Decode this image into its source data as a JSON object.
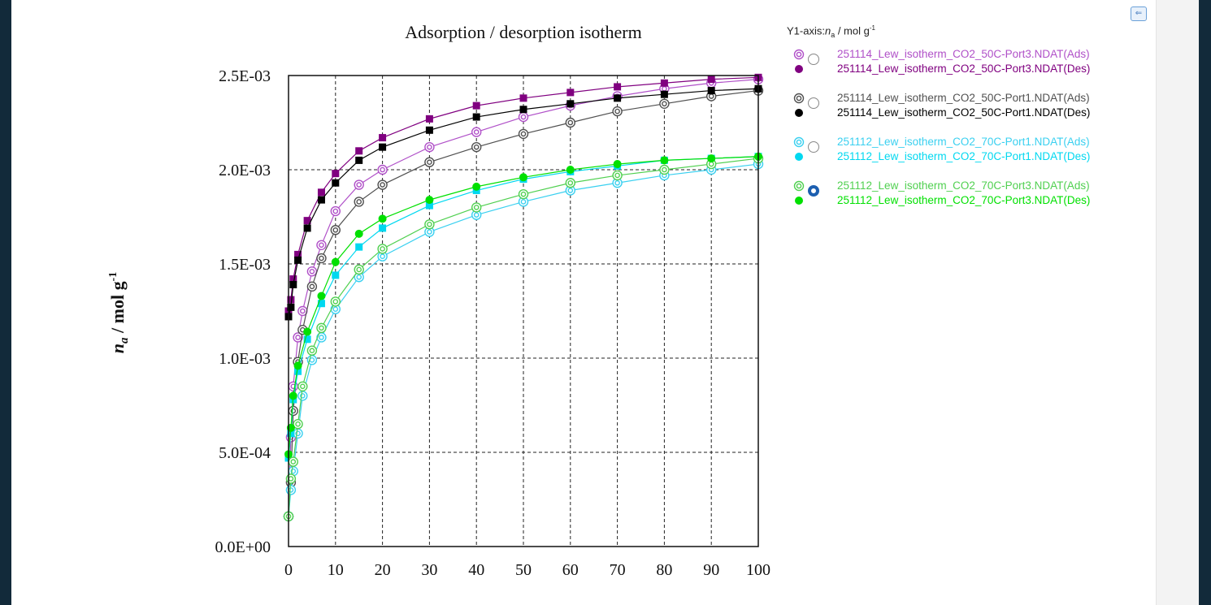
{
  "legend": {
    "axis_label": "Y1-axis:",
    "axis_sym": "n",
    "axis_sub": "a",
    "axis_unit": " / mol g",
    "axis_sup": "-1",
    "collapse_icon": "collapse-left-icon"
  },
  "chart_data": {
    "type": "scatter",
    "title": "Adsorption / desorption isotherm",
    "xlabel": "",
    "ylabel_symbol": "n",
    "ylabel_subscript": "a",
    "ylabel_unit": " / mol g",
    "ylabel_superscript": "-1",
    "xlim": [
      0,
      100
    ],
    "ylim": [
      0,
      0.0025
    ],
    "x_ticks": [
      0,
      10,
      20,
      30,
      40,
      50,
      60,
      70,
      80,
      90,
      100
    ],
    "x_tick_labels": [
      "0",
      "10",
      "20",
      "30",
      "40",
      "50",
      "60",
      "70",
      "80",
      "90",
      "100"
    ],
    "y_ticks": [
      0,
      0.0005,
      0.001,
      0.0015,
      0.002,
      0.0025
    ],
    "y_tick_labels": [
      "0.0E+00",
      "5.0E-04",
      "1.0E-03",
      "1.5E-03",
      "2.0E-03",
      "2.5E-03"
    ],
    "grid": true,
    "legend_position": "right",
    "series": [
      {
        "name": "251114_Lew_isotherm_CO2_50C-Port3.NDAT(Ads)",
        "color": "#b050c8",
        "marker": "double-circle",
        "x": [
          0,
          0.5,
          1,
          2,
          3,
          5,
          7,
          10,
          15,
          20,
          30,
          40,
          50,
          60,
          70,
          80,
          90,
          100
        ],
        "y": [
          0.00016,
          0.00058,
          0.00085,
          0.00111,
          0.00125,
          0.00146,
          0.0016,
          0.00178,
          0.00192,
          0.002,
          0.00212,
          0.0022,
          0.00228,
          0.00234,
          0.00239,
          0.00243,
          0.00246,
          0.00248
        ]
      },
      {
        "name": "251114_Lew_isotherm_CO2_50C-Port3.NDAT(Des)",
        "color": "#800080",
        "marker": "filled-square",
        "x": [
          0,
          0.5,
          1,
          2,
          4,
          7,
          10,
          15,
          20,
          30,
          40,
          50,
          60,
          70,
          80,
          90,
          100
        ],
        "y": [
          0.00125,
          0.00131,
          0.00142,
          0.00155,
          0.00173,
          0.00188,
          0.00198,
          0.0021,
          0.00217,
          0.00227,
          0.00234,
          0.00238,
          0.00241,
          0.00244,
          0.00246,
          0.00248,
          0.00249
        ]
      },
      {
        "name": "251114_Lew_isotherm_CO2_50C-Port1.NDAT(Ads)",
        "color": "#505050",
        "marker": "double-circle",
        "x": [
          0,
          0.5,
          1,
          2,
          3,
          5,
          7,
          10,
          15,
          20,
          30,
          40,
          50,
          60,
          70,
          80,
          90,
          100
        ],
        "y": [
          0.00016,
          0.00034,
          0.00072,
          0.00098,
          0.00115,
          0.00138,
          0.00153,
          0.00168,
          0.00183,
          0.00192,
          0.00204,
          0.00212,
          0.00219,
          0.00225,
          0.00231,
          0.00235,
          0.00239,
          0.00242
        ]
      },
      {
        "name": "251114_Lew_isotherm_CO2_50C-Port1.NDAT(Des)",
        "color": "#000000",
        "marker": "filled-square",
        "x": [
          0,
          0.5,
          1,
          2,
          4,
          7,
          10,
          15,
          20,
          30,
          40,
          50,
          60,
          70,
          80,
          90,
          100
        ],
        "y": [
          0.00122,
          0.00127,
          0.00139,
          0.00152,
          0.00169,
          0.00184,
          0.00193,
          0.00205,
          0.00212,
          0.00221,
          0.00228,
          0.00232,
          0.00235,
          0.00238,
          0.0024,
          0.00242,
          0.00243
        ]
      },
      {
        "name": "251112_Lew_isotherm_CO2_70C-Port1.NDAT(Ads)",
        "color": "#3ad0f0",
        "marker": "double-circle",
        "x": [
          0,
          0.5,
          1,
          2,
          3,
          5,
          7,
          10,
          15,
          20,
          30,
          40,
          50,
          60,
          70,
          80,
          90,
          100
        ],
        "y": [
          0.00016,
          0.0003,
          0.0004,
          0.0006,
          0.0008,
          0.00099,
          0.00111,
          0.00126,
          0.00143,
          0.00154,
          0.00167,
          0.00176,
          0.00183,
          0.00189,
          0.00193,
          0.00197,
          0.002,
          0.00203
        ]
      },
      {
        "name": "251112_Lew_isotherm_CO2_70C-Port1.NDAT(Des)",
        "color": "#00d8f0",
        "marker": "filled-square",
        "x": [
          0,
          0.5,
          1,
          2,
          4,
          7,
          10,
          15,
          20,
          30,
          40,
          50,
          60,
          70,
          80,
          90,
          100
        ],
        "y": [
          0.00047,
          0.0006,
          0.00078,
          0.00093,
          0.0011,
          0.00129,
          0.00144,
          0.00159,
          0.00169,
          0.00181,
          0.00189,
          0.00195,
          0.00199,
          0.00202,
          0.00205,
          0.00206,
          0.00207
        ]
      },
      {
        "name": "251112_Lew_isotherm_CO2_70C-Port3.NDAT(Ads)",
        "color": "#50d050",
        "marker": "double-circle",
        "x": [
          0,
          0.5,
          1,
          2,
          3,
          5,
          7,
          10,
          15,
          20,
          30,
          40,
          50,
          60,
          70,
          80,
          90,
          100
        ],
        "y": [
          0.00016,
          0.00036,
          0.00045,
          0.00065,
          0.00085,
          0.00104,
          0.00116,
          0.0013,
          0.00147,
          0.00158,
          0.00171,
          0.0018,
          0.00187,
          0.00193,
          0.00197,
          0.002,
          0.00203,
          0.00206
        ]
      },
      {
        "name": "251112_Lew_isotherm_CO2_70C-Port3.NDAT(Des)",
        "color": "#00e000",
        "marker": "filled-circle",
        "x": [
          0,
          0.5,
          1,
          2,
          4,
          7,
          10,
          15,
          20,
          30,
          40,
          50,
          60,
          70,
          80,
          90,
          100
        ],
        "y": [
          0.00049,
          0.00063,
          0.0008,
          0.00096,
          0.00114,
          0.00133,
          0.00151,
          0.00166,
          0.00174,
          0.00184,
          0.00191,
          0.00196,
          0.002,
          0.00203,
          0.00205,
          0.00206,
          0.00207
        ]
      }
    ]
  }
}
